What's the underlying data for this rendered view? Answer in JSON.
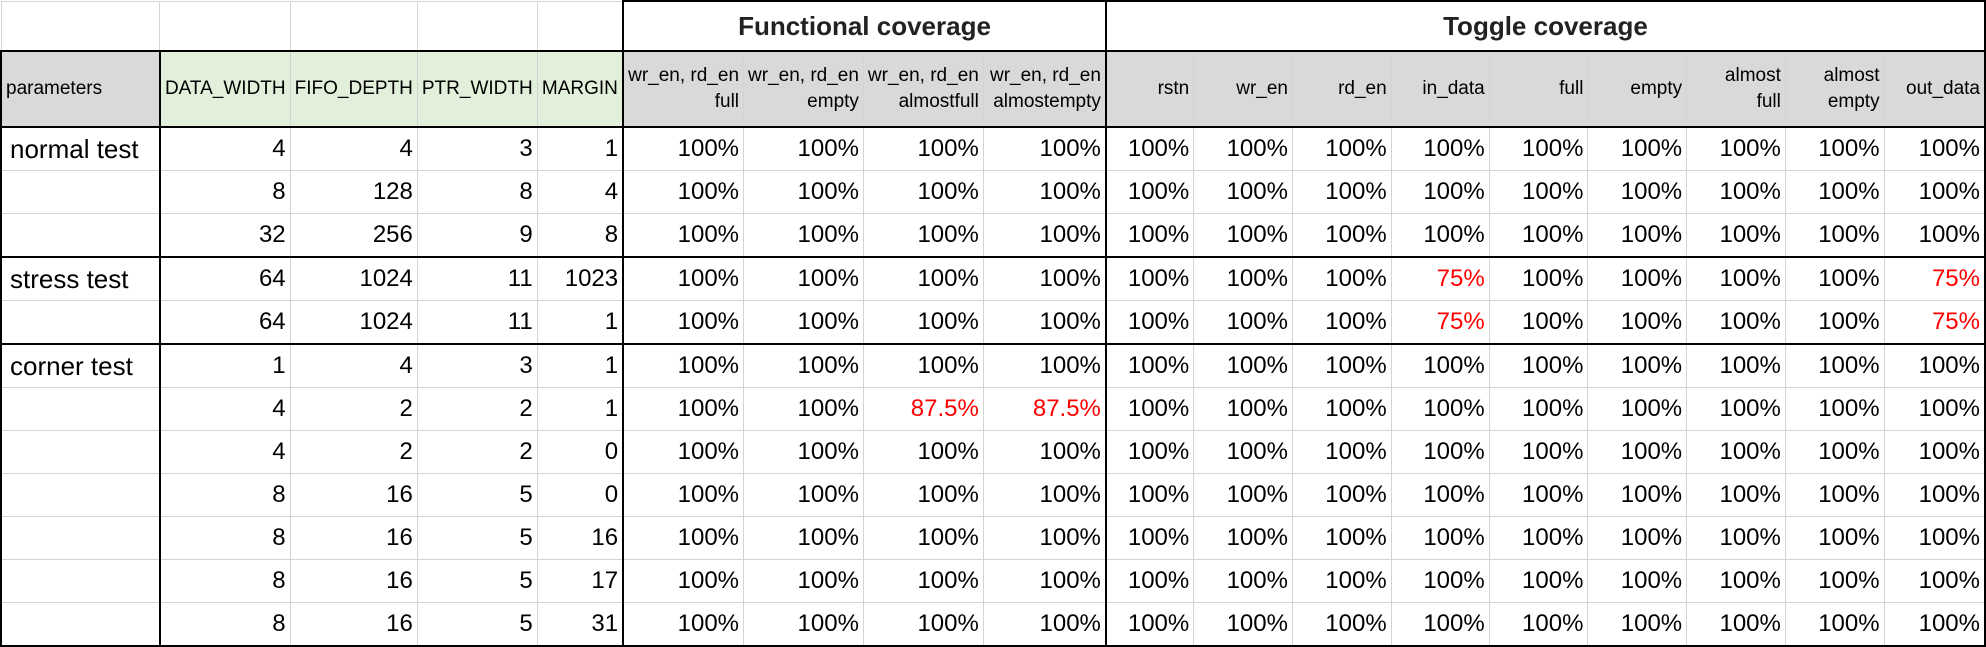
{
  "groups": {
    "functional": "Functional coverage",
    "toggle": "Toggle coverage"
  },
  "headers": {
    "parameters": "parameters",
    "data_width": "DATA_WIDTH",
    "fifo_depth": "FIFO_DEPTH",
    "ptr_width": "PTR_WIDTH",
    "margin": "MARGIN",
    "func": [
      [
        "wr_en, rd_en",
        "full"
      ],
      [
        "wr_en, rd_en",
        "empty"
      ],
      [
        "wr_en, rd_en",
        "almostfull"
      ],
      [
        "wr_en, rd_en",
        "almostempty"
      ]
    ],
    "toggle": [
      [
        "",
        "rstn"
      ],
      [
        "",
        "wr_en"
      ],
      [
        "",
        "rd_en"
      ],
      [
        "",
        "in_data"
      ],
      [
        "",
        "full"
      ],
      [
        "",
        "empty"
      ],
      [
        "almost",
        "full"
      ],
      [
        "almost",
        "empty"
      ],
      [
        "",
        "out_data"
      ]
    ]
  },
  "rows": [
    {
      "label": "normal test",
      "params": [
        "4",
        "4",
        "3",
        "1"
      ],
      "func": [
        "100%",
        "100%",
        "100%",
        "100%"
      ],
      "toggle": [
        "100%",
        "100%",
        "100%",
        "100%",
        "100%",
        "100%",
        "100%",
        "100%",
        "100%"
      ]
    },
    {
      "label": "",
      "params": [
        "8",
        "128",
        "8",
        "4"
      ],
      "func": [
        "100%",
        "100%",
        "100%",
        "100%"
      ],
      "toggle": [
        "100%",
        "100%",
        "100%",
        "100%",
        "100%",
        "100%",
        "100%",
        "100%",
        "100%"
      ]
    },
    {
      "label": "",
      "params": [
        "32",
        "256",
        "9",
        "8"
      ],
      "func": [
        "100%",
        "100%",
        "100%",
        "100%"
      ],
      "toggle": [
        "100%",
        "100%",
        "100%",
        "100%",
        "100%",
        "100%",
        "100%",
        "100%",
        "100%"
      ]
    },
    {
      "label": "stress test",
      "params": [
        "64",
        "1024",
        "11",
        "1023"
      ],
      "func": [
        "100%",
        "100%",
        "100%",
        "100%"
      ],
      "toggle": [
        "100%",
        "100%",
        "100%",
        "75%",
        "100%",
        "100%",
        "100%",
        "100%",
        "75%"
      ]
    },
    {
      "label": "",
      "params": [
        "64",
        "1024",
        "11",
        "1"
      ],
      "func": [
        "100%",
        "100%",
        "100%",
        "100%"
      ],
      "toggle": [
        "100%",
        "100%",
        "100%",
        "75%",
        "100%",
        "100%",
        "100%",
        "100%",
        "75%"
      ]
    },
    {
      "label": "corner test",
      "params": [
        "1",
        "4",
        "3",
        "1"
      ],
      "func": [
        "100%",
        "100%",
        "100%",
        "100%"
      ],
      "toggle": [
        "100%",
        "100%",
        "100%",
        "100%",
        "100%",
        "100%",
        "100%",
        "100%",
        "100%"
      ]
    },
    {
      "label": "",
      "params": [
        "4",
        "2",
        "2",
        "1"
      ],
      "func": [
        "100%",
        "100%",
        "87.5%",
        "87.5%"
      ],
      "toggle": [
        "100%",
        "100%",
        "100%",
        "100%",
        "100%",
        "100%",
        "100%",
        "100%",
        "100%"
      ]
    },
    {
      "label": "",
      "params": [
        "4",
        "2",
        "2",
        "0"
      ],
      "func": [
        "100%",
        "100%",
        "100%",
        "100%"
      ],
      "toggle": [
        "100%",
        "100%",
        "100%",
        "100%",
        "100%",
        "100%",
        "100%",
        "100%",
        "100%"
      ]
    },
    {
      "label": "",
      "params": [
        "8",
        "16",
        "5",
        "0"
      ],
      "func": [
        "100%",
        "100%",
        "100%",
        "100%"
      ],
      "toggle": [
        "100%",
        "100%",
        "100%",
        "100%",
        "100%",
        "100%",
        "100%",
        "100%",
        "100%"
      ]
    },
    {
      "label": "",
      "params": [
        "8",
        "16",
        "5",
        "16"
      ],
      "func": [
        "100%",
        "100%",
        "100%",
        "100%"
      ],
      "toggle": [
        "100%",
        "100%",
        "100%",
        "100%",
        "100%",
        "100%",
        "100%",
        "100%",
        "100%"
      ]
    },
    {
      "label": "",
      "params": [
        "8",
        "16",
        "5",
        "17"
      ],
      "func": [
        "100%",
        "100%",
        "100%",
        "100%"
      ],
      "toggle": [
        "100%",
        "100%",
        "100%",
        "100%",
        "100%",
        "100%",
        "100%",
        "100%",
        "100%"
      ]
    },
    {
      "label": "",
      "params": [
        "8",
        "16",
        "5",
        "31"
      ],
      "func": [
        "100%",
        "100%",
        "100%",
        "100%"
      ],
      "toggle": [
        "100%",
        "100%",
        "100%",
        "100%",
        "100%",
        "100%",
        "100%",
        "100%",
        "100%"
      ]
    }
  ],
  "colors": {
    "param_header_bg": "#e2efda",
    "header_bg": "#d9d9d9",
    "highlight": "#ff0000"
  }
}
